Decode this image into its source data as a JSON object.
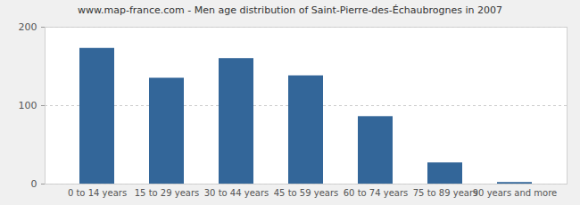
{
  "chart_data": {
    "type": "bar",
    "title": "www.map-france.com - Men age distribution of Saint-Pierre-des-Échaubrognes in 2007",
    "categories": [
      "0 to 14 years",
      "15 to 29 years",
      "30 to 44 years",
      "45 to 59 years",
      "60 to 74 years",
      "75 to 89 years",
      "90 years and more"
    ],
    "values": [
      173,
      135,
      160,
      138,
      86,
      27,
      2
    ],
    "color": "#336699",
    "ylim": [
      0,
      200
    ],
    "yticks": [
      0,
      100,
      200
    ],
    "grid": true
  }
}
